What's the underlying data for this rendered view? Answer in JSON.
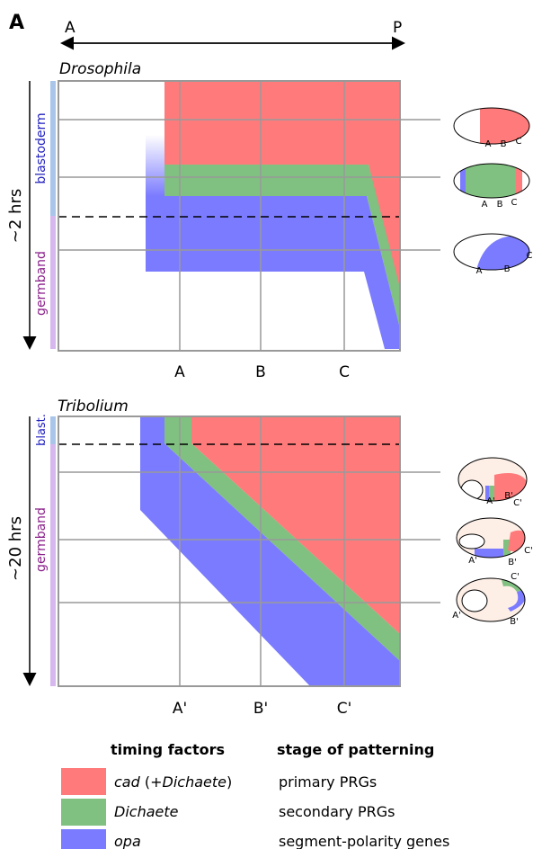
{
  "panel_label": "A",
  "axis": {
    "anterior": "A",
    "posterior": "P"
  },
  "drosophila": {
    "title": "Drosophila",
    "stages": [
      "blastoderm",
      "germband"
    ],
    "duration": "~2 hrs",
    "positions": [
      "A",
      "B",
      "C"
    ],
    "embryos": [
      [
        "A",
        "B",
        "C"
      ],
      [
        "A",
        "B",
        "C"
      ],
      [
        "A",
        "B",
        "C"
      ]
    ]
  },
  "tribolium": {
    "title": "Tribolium",
    "stages": [
      "blast.",
      "germband"
    ],
    "duration": "~20 hrs",
    "positions": [
      "A'",
      "B'",
      "C'"
    ],
    "embryos": [
      [
        "A'",
        "B'",
        "C'"
      ],
      [
        "A'",
        "B'",
        "C'"
      ],
      [
        "A'",
        "B'",
        "C'"
      ]
    ]
  },
  "legend": {
    "headers": [
      "timing factors",
      "stage of patterning"
    ],
    "rows": [
      {
        "factor": [
          "cad",
          " (+",
          "Dichaete",
          ")"
        ],
        "stage": "primary PRGs"
      },
      {
        "factor": [
          "Dichaete"
        ],
        "stage": "secondary PRGs"
      },
      {
        "factor": [
          "opa"
        ],
        "stage": "segment-polarity genes"
      }
    ]
  }
}
